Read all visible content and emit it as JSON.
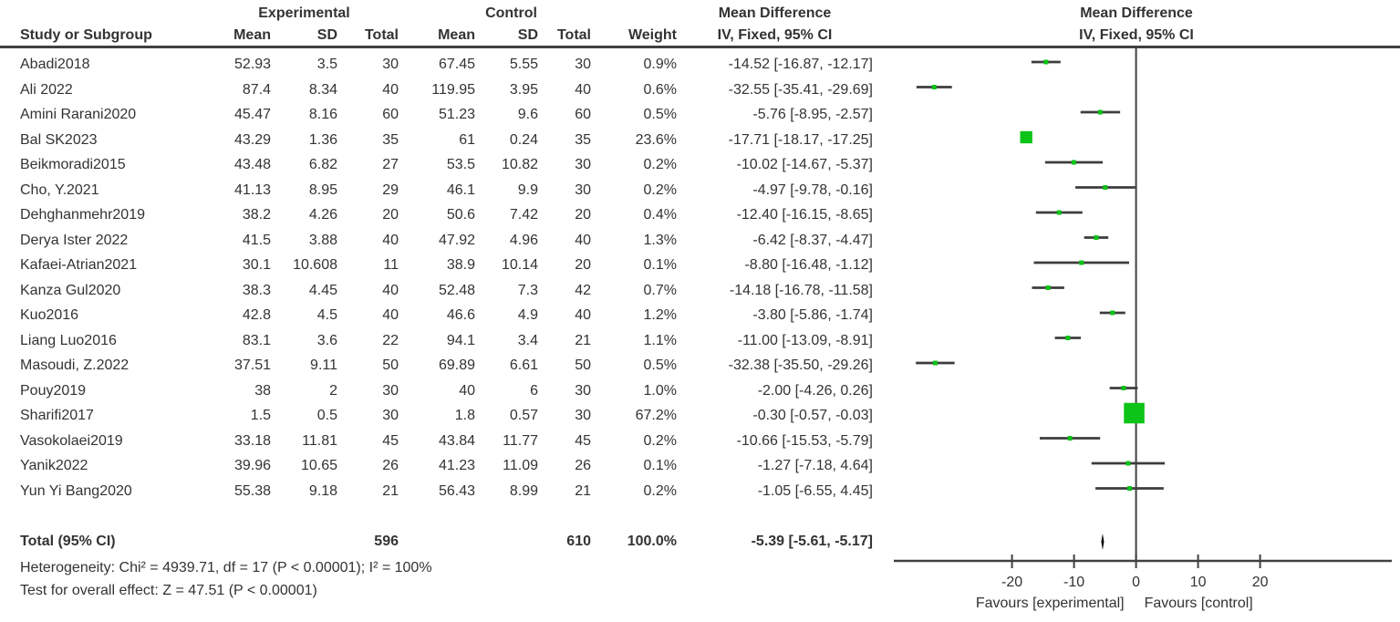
{
  "table": {
    "group_headers": {
      "experimental": "Experimental",
      "control": "Control",
      "mean_difference_text": "Mean Difference",
      "mean_difference_plot": "Mean Difference"
    },
    "column_headers": {
      "study": "Study or Subgroup",
      "mean_exp": "Mean",
      "sd_exp": "SD",
      "total_exp": "Total",
      "mean_ctrl": "Mean",
      "sd_ctrl": "SD",
      "total_ctrl": "Total",
      "weight": "Weight",
      "ci_text": "IV, Fixed, 95% CI",
      "ci_plot": "IV, Fixed, 95% CI"
    }
  },
  "chart_data": {
    "type": "forest",
    "effect_measure": "Mean Difference, IV, Fixed, 95% CI",
    "studies": [
      {
        "name": "Abadi2018",
        "mean1": "52.93",
        "sd1": "3.5",
        "n1": "30",
        "mean2": "67.45",
        "sd2": "5.55",
        "n2": "30",
        "weight": "0.9%",
        "ci": "-14.52 [-16.87, -12.17]",
        "w": 0.9,
        "md": -14.52,
        "lo": -16.87,
        "hi": -12.17
      },
      {
        "name": "Ali 2022",
        "mean1": "87.4",
        "sd1": "8.34",
        "n1": "40",
        "mean2": "119.95",
        "sd2": "3.95",
        "n2": "40",
        "weight": "0.6%",
        "ci": "-32.55 [-35.41, -29.69]",
        "w": 0.6,
        "md": -32.55,
        "lo": -35.41,
        "hi": -29.69
      },
      {
        "name": "Amini Rarani2020",
        "mean1": "45.47",
        "sd1": "8.16",
        "n1": "60",
        "mean2": "51.23",
        "sd2": "9.6",
        "n2": "60",
        "weight": "0.5%",
        "ci": "-5.76 [-8.95, -2.57]",
        "w": 0.5,
        "md": -5.76,
        "lo": -8.95,
        "hi": -2.57
      },
      {
        "name": "Bal SK2023",
        "mean1": "43.29",
        "sd1": "1.36",
        "n1": "35",
        "mean2": "61",
        "sd2": "0.24",
        "n2": "35",
        "weight": "23.6%",
        "ci": "-17.71 [-18.17, -17.25]",
        "w": 23.6,
        "md": -17.71,
        "lo": -18.17,
        "hi": -17.25
      },
      {
        "name": "Beikmoradi2015",
        "mean1": "43.48",
        "sd1": "6.82",
        "n1": "27",
        "mean2": "53.5",
        "sd2": "10.82",
        "n2": "30",
        "weight": "0.2%",
        "ci": "-10.02 [-14.67, -5.37]",
        "w": 0.2,
        "md": -10.02,
        "lo": -14.67,
        "hi": -5.37
      },
      {
        "name": "Cho, Y.2021",
        "mean1": "41.13",
        "sd1": "8.95",
        "n1": "29",
        "mean2": "46.1",
        "sd2": "9.9",
        "n2": "30",
        "weight": "0.2%",
        "ci": "-4.97 [-9.78, -0.16]",
        "w": 0.2,
        "md": -4.97,
        "lo": -9.78,
        "hi": -0.16
      },
      {
        "name": "Dehghanmehr2019",
        "mean1": "38.2",
        "sd1": "4.26",
        "n1": "20",
        "mean2": "50.6",
        "sd2": "7.42",
        "n2": "20",
        "weight": "0.4%",
        "ci": "-12.40 [-16.15, -8.65]",
        "w": 0.4,
        "md": -12.4,
        "lo": -16.15,
        "hi": -8.65
      },
      {
        "name": "Derya Ister 2022",
        "mean1": "41.5",
        "sd1": "3.88",
        "n1": "40",
        "mean2": "47.92",
        "sd2": "4.96",
        "n2": "40",
        "weight": "1.3%",
        "ci": "-6.42 [-8.37, -4.47]",
        "w": 1.3,
        "md": -6.42,
        "lo": -8.37,
        "hi": -4.47
      },
      {
        "name": "Kafaei-Atrian2021",
        "mean1": "30.1",
        "sd1": "10.608",
        "n1": "11",
        "mean2": "38.9",
        "sd2": "10.14",
        "n2": "20",
        "weight": "0.1%",
        "ci": "-8.80 [-16.48, -1.12]",
        "w": 0.1,
        "md": -8.8,
        "lo": -16.48,
        "hi": -1.12
      },
      {
        "name": "Kanza Gul2020",
        "mean1": "38.3",
        "sd1": "4.45",
        "n1": "40",
        "mean2": "52.48",
        "sd2": "7.3",
        "n2": "42",
        "weight": "0.7%",
        "ci": "-14.18 [-16.78, -11.58]",
        "w": 0.7,
        "md": -14.18,
        "lo": -16.78,
        "hi": -11.58
      },
      {
        "name": "Kuo2016",
        "mean1": "42.8",
        "sd1": "4.5",
        "n1": "40",
        "mean2": "46.6",
        "sd2": "4.9",
        "n2": "40",
        "weight": "1.2%",
        "ci": "-3.80 [-5.86, -1.74]",
        "w": 1.2,
        "md": -3.8,
        "lo": -5.86,
        "hi": -1.74
      },
      {
        "name": "Liang Luo2016",
        "mean1": "83.1",
        "sd1": "3.6",
        "n1": "22",
        "mean2": "94.1",
        "sd2": "3.4",
        "n2": "21",
        "weight": "1.1%",
        "ci": "-11.00 [-13.09, -8.91]",
        "w": 1.1,
        "md": -11.0,
        "lo": -13.09,
        "hi": -8.91
      },
      {
        "name": "Masoudi, Z.2022",
        "mean1": "37.51",
        "sd1": "9.11",
        "n1": "50",
        "mean2": "69.89",
        "sd2": "6.61",
        "n2": "50",
        "weight": "0.5%",
        "ci": "-32.38 [-35.50, -29.26]",
        "w": 0.5,
        "md": -32.38,
        "lo": -35.5,
        "hi": -29.26
      },
      {
        "name": "Pouy2019",
        "mean1": "38",
        "sd1": "2",
        "n1": "30",
        "mean2": "40",
        "sd2": "6",
        "n2": "30",
        "weight": "1.0%",
        "ci": "-2.00 [-4.26, 0.26]",
        "w": 1.0,
        "md": -2.0,
        "lo": -4.26,
        "hi": 0.26
      },
      {
        "name": "Sharifi2017",
        "mean1": "1.5",
        "sd1": "0.5",
        "n1": "30",
        "mean2": "1.8",
        "sd2": "0.57",
        "n2": "30",
        "weight": "67.2%",
        "ci": "-0.30 [-0.57, -0.03]",
        "w": 67.2,
        "md": -0.3,
        "lo": -0.57,
        "hi": -0.03
      },
      {
        "name": "Vasokolaei2019",
        "mean1": "33.18",
        "sd1": "11.81",
        "n1": "45",
        "mean2": "43.84",
        "sd2": "11.77",
        "n2": "45",
        "weight": "0.2%",
        "ci": "-10.66 [-15.53, -5.79]",
        "w": 0.2,
        "md": -10.66,
        "lo": -15.53,
        "hi": -5.79
      },
      {
        "name": "Yanik2022",
        "mean1": "39.96",
        "sd1": "10.65",
        "n1": "26",
        "mean2": "41.23",
        "sd2": "11.09",
        "n2": "26",
        "weight": "0.1%",
        "ci": "-1.27 [-7.18, 4.64]",
        "w": 0.1,
        "md": -1.27,
        "lo": -7.18,
        "hi": 4.64
      },
      {
        "name": "Yun Yi Bang2020",
        "mean1": "55.38",
        "sd1": "9.18",
        "n1": "21",
        "mean2": "56.43",
        "sd2": "8.99",
        "n2": "21",
        "weight": "0.2%",
        "ci": "-1.05 [-6.55, 4.45]",
        "w": 0.2,
        "md": -1.05,
        "lo": -6.55,
        "hi": 4.45
      }
    ],
    "total": {
      "label": "Total (95% CI)",
      "n1": "596",
      "n2": "610",
      "weight": "100.0%",
      "ci": "-5.39 [-5.61, -5.17]",
      "md": -5.39,
      "lo": -5.61,
      "hi": -5.17
    },
    "footer": {
      "heterogeneity": "Heterogeneity: Chi² = 4939.71, df = 17 (P < 0.00001); I² = 100%",
      "overall_effect": "Test for overall effect: Z = 47.51 (P < 0.00001)"
    },
    "axis": {
      "ticks": [
        -20,
        -10,
        0,
        10,
        20
      ],
      "min": -39,
      "max": 41,
      "favours_left": "Favours [experimental]",
      "favours_right": "Favours [control]"
    },
    "colors": {
      "square": "#0cc317",
      "ci_line": "#3d3d3d",
      "diamond": "#000000",
      "axis": "#404040"
    }
  }
}
